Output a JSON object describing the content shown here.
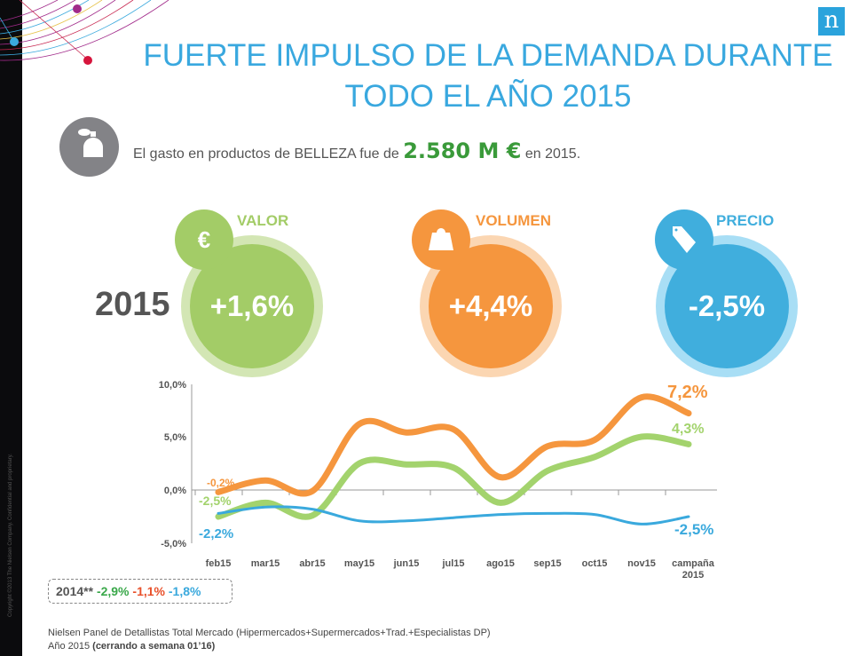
{
  "copyright": "Copyright ©2013 The Nielsen Company. Confidential and proprietary.",
  "logo": "n",
  "title_line1": "FUERTE IMPULSO DE LA DEMANDA DURANTE",
  "title_line2": "TODO EL AÑO 2015",
  "spend": {
    "pre": "El gasto en productos de BELLEZA fue de ",
    "amount": "2.580 M €",
    "post": " en 2015.",
    "icon": "perfume-icon"
  },
  "year": "2015",
  "kpis": [
    {
      "label": "VALOR",
      "value": "+1,6%",
      "icon": "euro-icon",
      "color": "#a3cc67",
      "ring": "#d3e6b4"
    },
    {
      "label": "VOLUMEN",
      "value": "+4,4%",
      "icon": "weight-icon",
      "color": "#f5963e",
      "ring": "#fbd6b2"
    },
    {
      "label": "PRECIO",
      "value": "-2,5%",
      "icon": "price-tag-icon",
      "color": "#40aedd",
      "ring": "#a8def5"
    }
  ],
  "chart_data": {
    "type": "line",
    "categories": [
      "feb15",
      "mar15",
      "abr15",
      "may15",
      "jun15",
      "jul15",
      "ago15",
      "sep15",
      "oct15",
      "nov15",
      "campaña 2015"
    ],
    "ylim": [
      -5,
      10
    ],
    "yticks": [
      "10,0%",
      "5,0%",
      "0,0%",
      "-5,0%"
    ],
    "series": [
      {
        "key": "volumen",
        "color": "#f5963e",
        "values": [
          -0.2,
          0.9,
          -0.1,
          6.2,
          5.4,
          5.7,
          1.2,
          4.1,
          4.7,
          8.7,
          7.2
        ],
        "start_label": "-0,2%",
        "end_label": "7,2%"
      },
      {
        "key": "valor",
        "color": "#a3d36d",
        "values": [
          -2.5,
          -1.2,
          -2.4,
          2.5,
          2.4,
          2.1,
          -1.2,
          1.8,
          3.1,
          5.0,
          4.3
        ],
        "start_label": "-2,5%",
        "end_label": "4,3%"
      },
      {
        "key": "precio",
        "color": "#3aa9dd",
        "values": [
          -2.2,
          -1.6,
          -1.8,
          -2.9,
          -2.9,
          -2.6,
          -2.3,
          -2.2,
          -2.3,
          -3.2,
          -2.5
        ],
        "start_label": "-2,2%",
        "end_label": "-2,5%"
      }
    ]
  },
  "prev": {
    "label": "2014**",
    "valor": "-2,9%",
    "volumen": "-1,1%",
    "precio": "-1,8%"
  },
  "source_line1": "Nielsen Panel de Detallistas Total Mercado (Hipermercados+Supermercados+Trad.+Especialistas DP)",
  "source_year": "Año 2015 ",
  "source_note": "(cerrando a semana 01’16)"
}
